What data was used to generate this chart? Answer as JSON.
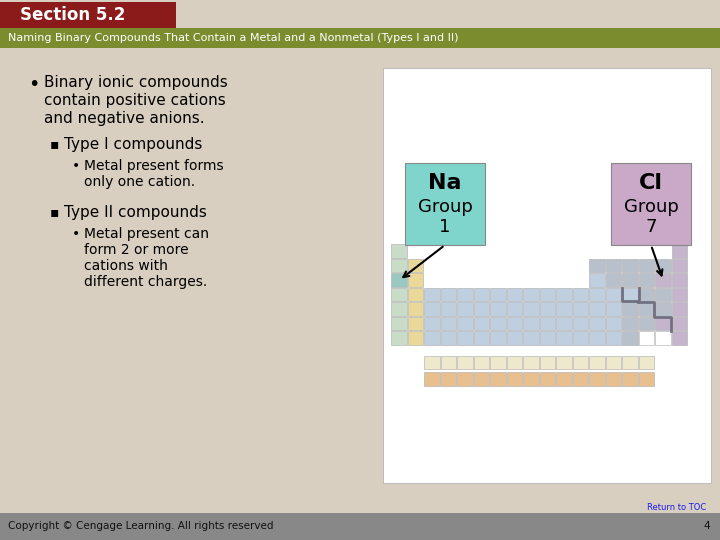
{
  "title_section": "Section 5.2",
  "title_bar_color": "#8B1A1A",
  "header_text": "Naming Binary Compounds That Contain a Metal and a Nonmetal (Types I and II)",
  "header_bg": "#7A8C2E",
  "slide_bg": "#D8CFC0",
  "footer_bg": "#888888",
  "footer_text": "Copyright © Cengage Learning. All rights reserved",
  "footer_page": "4",
  "na_box_color": "#7FD4CC",
  "cl_box_color": "#C9A8C8",
  "pt_bg": "#FFFFFF",
  "pt_blue": "#C0CFDF",
  "pt_green_light": "#C8DCC8",
  "pt_yellow": "#EAD898",
  "pt_purple_nonmetal": "#C4B4CC",
  "pt_gray_metalloid": "#B8C0CC",
  "pt_cream": "#EEE8CC",
  "pt_orange": "#E8C090",
  "pt_teal": "#98C8C0"
}
